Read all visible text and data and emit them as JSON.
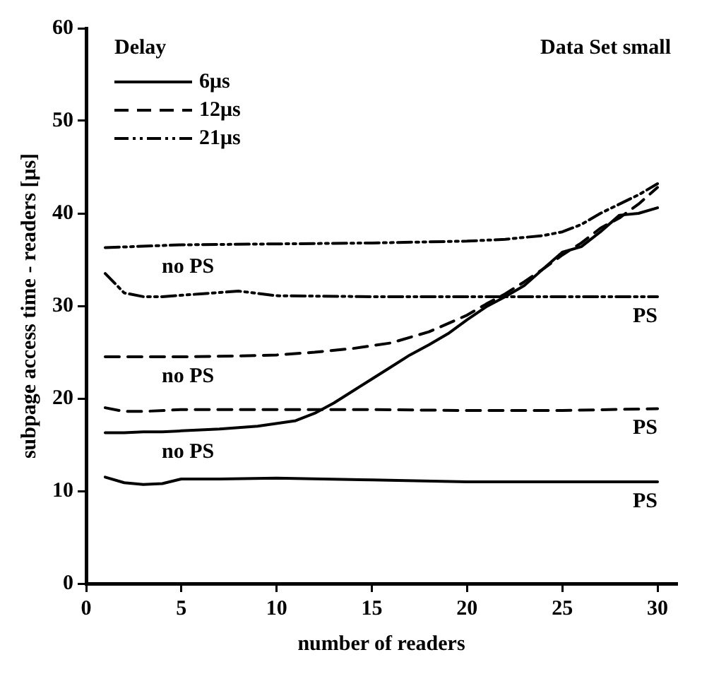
{
  "chart_data": {
    "type": "line",
    "xlabel": "number of readers",
    "ylabel": "subpage access time - readers [μs]",
    "legend_title": "Delay",
    "legend": "top left",
    "grid": false,
    "marker": "none",
    "xlim": [
      0,
      31
    ],
    "xticks": [
      0,
      5,
      10,
      15,
      20,
      25,
      30
    ],
    "ylim": [
      0,
      60
    ],
    "yticks": [
      0,
      10,
      20,
      30,
      40,
      50,
      60
    ],
    "series": [
      {
        "name": "6μs",
        "color": "#000000",
        "line_style": "solid",
        "x": [
          1,
          2,
          3,
          4,
          5,
          7,
          9,
          11,
          12,
          13,
          14,
          15,
          16,
          17,
          18,
          19,
          20,
          21,
          22,
          23,
          24,
          25,
          26,
          27,
          28,
          29,
          30
        ],
        "values": [
          16.3,
          16.3,
          16.4,
          16.4,
          16.5,
          16.7,
          17.0,
          17.6,
          18.4,
          19.5,
          20.8,
          22.1,
          23.4,
          24.7,
          25.8,
          27.0,
          28.5,
          29.9,
          31.0,
          32.2,
          34.0,
          35.8,
          36.4,
          38.0,
          39.8,
          40.0,
          40.6
        ]
      },
      {
        "color": "#000000",
        "line_style": "solid",
        "x": [
          1,
          2,
          3,
          4,
          5,
          7,
          10,
          15,
          20,
          25,
          30
        ],
        "values": [
          11.5,
          10.9,
          10.7,
          10.8,
          11.3,
          11.3,
          11.4,
          11.2,
          11.0,
          11.0,
          11.0
        ]
      },
      {
        "name": "12μs",
        "color": "#000000",
        "line_style": "dashed",
        "x": [
          1,
          3,
          5,
          8,
          10,
          12,
          14,
          16,
          18,
          20,
          21,
          22,
          23,
          24,
          25,
          26,
          27,
          28,
          29,
          30
        ],
        "values": [
          24.5,
          24.5,
          24.5,
          24.6,
          24.7,
          25.0,
          25.4,
          26.0,
          27.2,
          29.0,
          30.2,
          31.3,
          32.6,
          34.0,
          35.5,
          36.8,
          38.4,
          39.5,
          41.0,
          42.8
        ]
      },
      {
        "color": "#000000",
        "line_style": "dashed",
        "x": [
          1,
          2,
          3,
          5,
          10,
          15,
          20,
          25,
          30
        ],
        "values": [
          19.0,
          18.6,
          18.6,
          18.8,
          18.8,
          18.8,
          18.7,
          18.7,
          18.9
        ]
      },
      {
        "name": "21μs",
        "color": "#000000",
        "line_style": "dotted",
        "x": [
          1,
          5,
          10,
          15,
          20,
          22,
          24,
          25,
          26,
          27,
          28,
          29,
          30
        ],
        "values": [
          36.3,
          36.6,
          36.7,
          36.8,
          37.0,
          37.2,
          37.6,
          38.0,
          38.8,
          40.0,
          41.0,
          42.0,
          43.2
        ]
      },
      {
        "color": "#000000",
        "line_style": "dotted",
        "x": [
          1,
          2,
          3,
          4,
          6,
          8,
          10,
          15,
          20,
          25,
          30
        ],
        "values": [
          33.5,
          31.4,
          31.0,
          31.0,
          31.3,
          31.6,
          31.1,
          31.0,
          31.0,
          31.0,
          31.0
        ]
      }
    ],
    "annotations": [
      "Data Set small",
      "no PS",
      "PS",
      "no PS",
      "PS",
      "no PS",
      "PS"
    ]
  }
}
